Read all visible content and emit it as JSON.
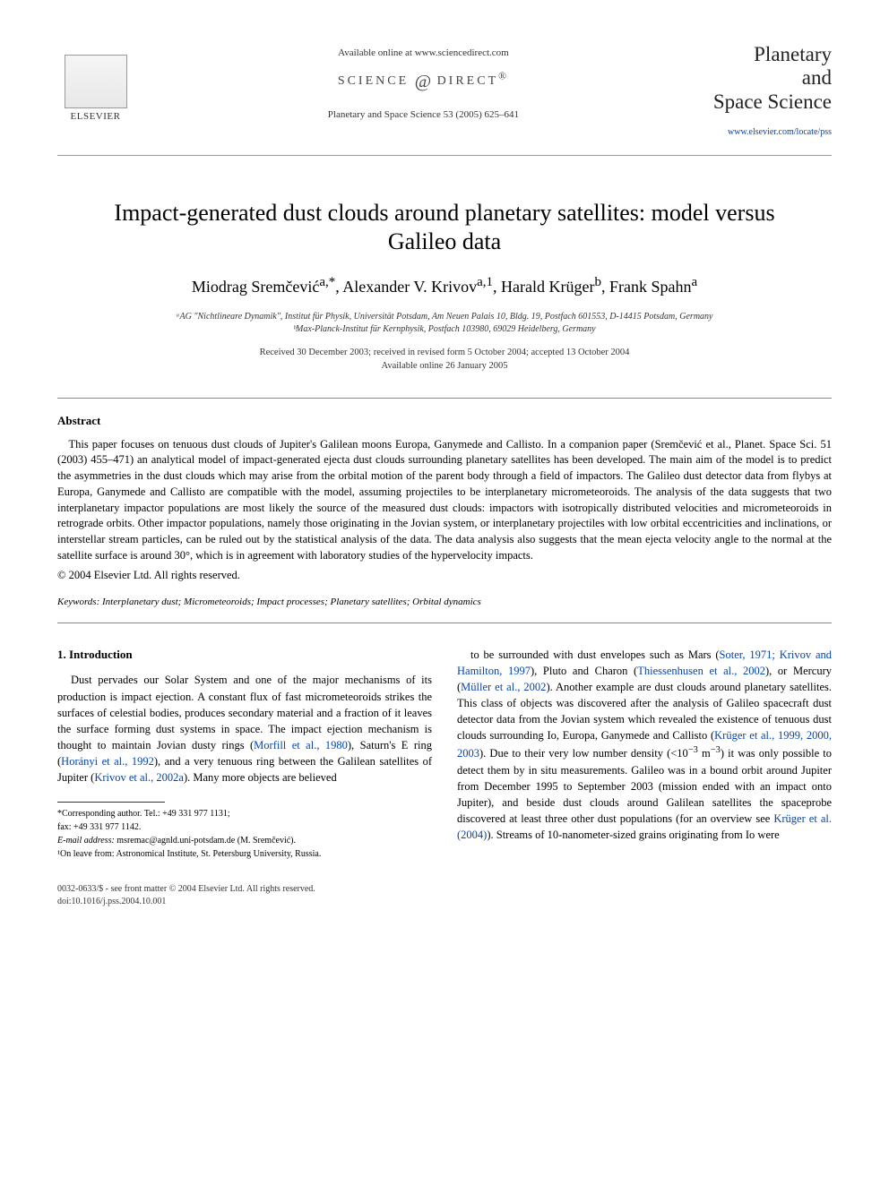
{
  "header": {
    "available_online": "Available online at www.sciencedirect.com",
    "science_direct": "SCIENCE @ DIRECT®",
    "citation": "Planetary and Space Science 53 (2005) 625–641",
    "elsevier_label": "ELSEVIER",
    "journal_name_line1": "Planetary",
    "journal_name_line2": "and",
    "journal_name_line3": "Space Science",
    "journal_url": "www.elsevier.com/locate/pss"
  },
  "paper": {
    "title": "Impact-generated dust clouds around planetary satellites: model versus Galileo data",
    "authors_html": "Miodrag Sremčević<sup>a,*</sup>, Alexander V. Krivov<sup>a,1</sup>, Harald Krüger<sup>b</sup>, Frank Spahn<sup>a</sup>",
    "affiliation_a": "ᵃAG \"Nichtlineare Dynamik\", Institut für Physik, Universität Potsdam, Am Neuen Palais 10, Bldg. 19, Postfach 601553, D-14415 Potsdam, Germany",
    "affiliation_b": "ᵇMax-Planck-Institut für Kernphysik, Postfach 103980, 69029 Heidelberg, Germany",
    "dates_line1": "Received 30 December 2003; received in revised form 5 October 2004; accepted 13 October 2004",
    "dates_line2": "Available online 26 January 2005"
  },
  "abstract": {
    "heading": "Abstract",
    "text": "This paper focuses on tenuous dust clouds of Jupiter's Galilean moons Europa, Ganymede and Callisto. In a companion paper (Sremčević et al., Planet. Space Sci. 51 (2003) 455–471) an analytical model of impact-generated ejecta dust clouds surrounding planetary satellites has been developed. The main aim of the model is to predict the asymmetries in the dust clouds which may arise from the orbital motion of the parent body through a field of impactors. The Galileo dust detector data from flybys at Europa, Ganymede and Callisto are compatible with the model, assuming projectiles to be interplanetary micrometeoroids. The analysis of the data suggests that two interplanetary impactor populations are most likely the source of the measured dust clouds: impactors with isotropically distributed velocities and micrometeoroids in retrograde orbits. Other impactor populations, namely those originating in the Jovian system, or interplanetary projectiles with low orbital eccentricities and inclinations, or interstellar stream particles, can be ruled out by the statistical analysis of the data. The data analysis also suggests that the mean ejecta velocity angle to the normal at the satellite surface is around 30°, which is in agreement with laboratory studies of the hypervelocity impacts.",
    "copyright": "© 2004 Elsevier Ltd. All rights reserved."
  },
  "keywords": {
    "label": "Keywords:",
    "list": "Interplanetary dust; Micrometeoroids; Impact processes; Planetary satellites; Orbital dynamics"
  },
  "intro": {
    "heading": "1. Introduction",
    "col1_html": "Dust pervades our Solar System and one of the major mechanisms of its production is impact ejection. A constant flux of fast micrometeoroids strikes the surfaces of celestial bodies, produces secondary material and a fraction of it leaves the surface forming dust systems in space. The impact ejection mechanism is thought to maintain Jovian dusty rings (<span class=\"link\">Morfill et al., 1980</span>), Saturn's E ring (<span class=\"link\">Horányi et al., 1992</span>), and a very tenuous ring between the Galilean satellites of Jupiter (<span class=\"link\">Krivov et al., 2002a</span>). Many more objects are believed",
    "col2_html": "to be surrounded with dust envelopes such as Mars (<span class=\"link\">Soter, 1971; Krivov and Hamilton, 1997</span>), Pluto and Charon (<span class=\"link\">Thiessenhusen et al., 2002</span>), or Mercury (<span class=\"link\">Müller et al., 2002</span>). Another example are dust clouds around planetary satellites. This class of objects was discovered after the analysis of Galileo spacecraft dust detector data from the Jovian system which revealed the existence of tenuous dust clouds surrounding Io, Europa, Ganymede and Callisto (<span class=\"link\">Krüger et al., 1999, 2000, 2003</span>). Due to their very low number density (&lt;10<sup>−3</sup> m<sup>−3</sup>) it was only possible to detect them by in situ measurements. Galileo was in a bound orbit around Jupiter from December 1995 to September 2003 (mission ended with an impact onto Jupiter), and beside dust clouds around Galilean satellites the spaceprobe discovered at least three other dust populations (for an overview see <span class=\"link\">Krüger et al. (2004)</span>). Streams of 10-nanometer-sized grains originating from Io were"
  },
  "footnotes": {
    "corresponding": "*Corresponding author. Tel.: +49 331 977 1131;",
    "fax": "fax: +49 331 977 1142.",
    "email_label": "E-mail address:",
    "email": "msremac@agnld.uni-potsdam.de (M. Sremčević).",
    "note1": "¹On leave from: Astronomical Institute, St. Petersburg University, Russia."
  },
  "bottom": {
    "line1": "0032-0633/$ - see front matter © 2004 Elsevier Ltd. All rights reserved.",
    "line2": "doi:10.1016/j.pss.2004.10.001"
  }
}
